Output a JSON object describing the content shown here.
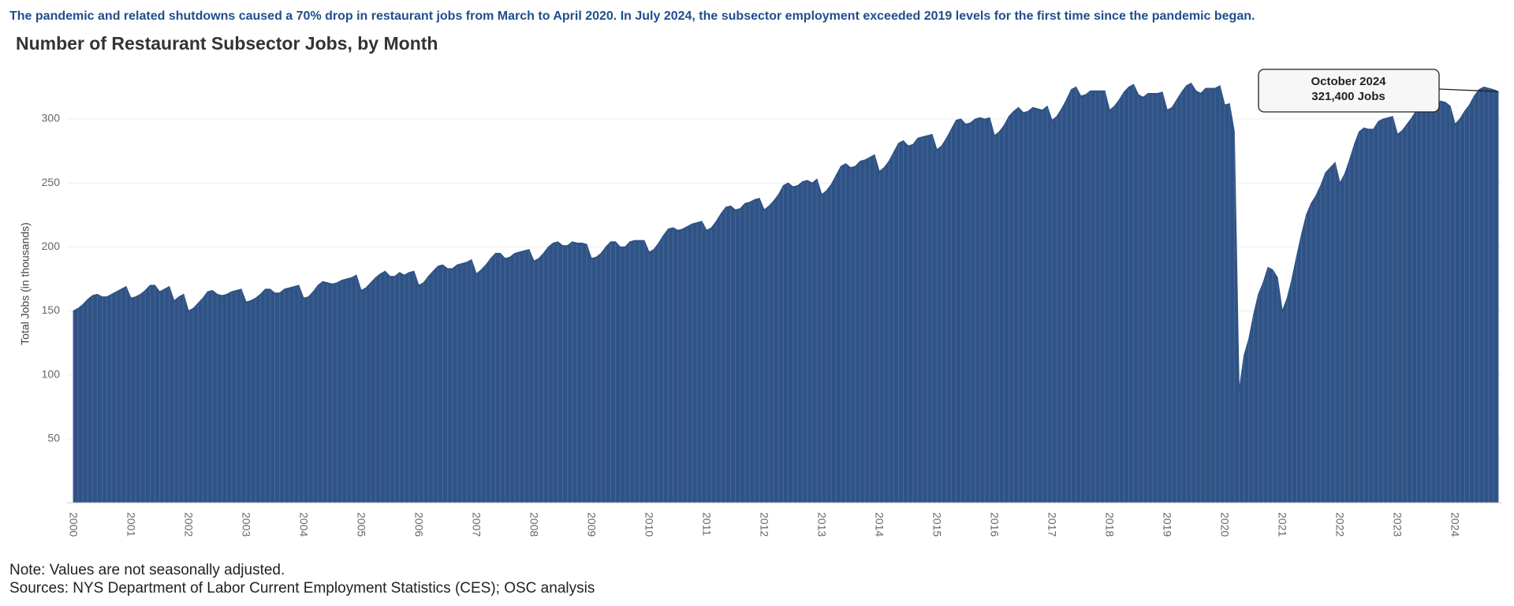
{
  "chart_data": {
    "type": "area",
    "subtitle": "The pandemic and related shutdowns caused a 70% drop in restaurant jobs from March to April 2020. In July 2024, the subsector employment exceeded 2019 levels for the first time since the pandemic began.",
    "title": "Number of Restaurant Subsector Jobs, by Month",
    "ylabel": "Total Jobs (in thousands)",
    "notes": [
      "Note: Values are not seasonally adjusted.",
      "Sources: NYS Department of Labor Current Employment Statistics (CES); OSC analysis"
    ],
    "annotation": {
      "title": "October 2024",
      "label": "321,400 Jobs"
    },
    "color": "#2f5386",
    "grid": true,
    "ylim": [
      0,
      340
    ],
    "yticks": [
      50,
      100,
      150,
      200,
      250,
      300
    ],
    "categories": [
      "2000",
      null,
      null,
      null,
      null,
      null,
      null,
      null,
      null,
      null,
      null,
      null,
      "2001",
      null,
      null,
      null,
      null,
      null,
      null,
      null,
      null,
      null,
      null,
      null,
      "2002",
      null,
      null,
      null,
      null,
      null,
      null,
      null,
      null,
      null,
      null,
      null,
      "2003",
      null,
      null,
      null,
      null,
      null,
      null,
      null,
      null,
      null,
      null,
      null,
      "2004",
      null,
      null,
      null,
      null,
      null,
      null,
      null,
      null,
      null,
      null,
      null,
      "2005",
      null,
      null,
      null,
      null,
      null,
      null,
      null,
      null,
      null,
      null,
      null,
      "2006",
      null,
      null,
      null,
      null,
      null,
      null,
      null,
      null,
      null,
      null,
      null,
      "2007",
      null,
      null,
      null,
      null,
      null,
      null,
      null,
      null,
      null,
      null,
      null,
      "2008",
      null,
      null,
      null,
      null,
      null,
      null,
      null,
      null,
      null,
      null,
      null,
      "2009",
      null,
      null,
      null,
      null,
      null,
      null,
      null,
      null,
      null,
      null,
      null,
      "2010",
      null,
      null,
      null,
      null,
      null,
      null,
      null,
      null,
      null,
      null,
      null,
      "2011",
      null,
      null,
      null,
      null,
      null,
      null,
      null,
      null,
      null,
      null,
      null,
      "2012",
      null,
      null,
      null,
      null,
      null,
      null,
      null,
      null,
      null,
      null,
      null,
      "2013",
      null,
      null,
      null,
      null,
      null,
      null,
      null,
      null,
      null,
      null,
      null,
      "2014",
      null,
      null,
      null,
      null,
      null,
      null,
      null,
      null,
      null,
      null,
      null,
      "2015",
      null,
      null,
      null,
      null,
      null,
      null,
      null,
      null,
      null,
      null,
      null,
      "2016",
      null,
      null,
      null,
      null,
      null,
      null,
      null,
      null,
      null,
      null,
      null,
      "2017",
      null,
      null,
      null,
      null,
      null,
      null,
      null,
      null,
      null,
      null,
      null,
      "2018",
      null,
      null,
      null,
      null,
      null,
      null,
      null,
      null,
      null,
      null,
      null,
      "2019",
      null,
      null,
      null,
      null,
      null,
      null,
      null,
      null,
      null,
      null,
      null,
      "2020",
      null,
      null,
      null,
      null,
      null,
      null,
      null,
      null,
      null,
      null,
      null,
      "2021",
      null,
      null,
      null,
      null,
      null,
      null,
      null,
      null,
      null,
      null,
      null,
      "2022",
      null,
      null,
      null,
      null,
      null,
      null,
      null,
      null,
      null,
      null,
      null,
      "2023",
      null,
      null,
      null,
      null,
      null,
      null,
      null,
      null,
      null,
      null,
      null,
      "2024",
      null,
      null,
      null,
      null,
      null,
      null,
      null,
      null,
      null
    ],
    "values": [
      150,
      152,
      155,
      159,
      162,
      163,
      161,
      161,
      163,
      165,
      167,
      169,
      160,
      161,
      163,
      166,
      170,
      170,
      165,
      167,
      169,
      158,
      161,
      163,
      150,
      152,
      156,
      160,
      165,
      166,
      163,
      162,
      163,
      165,
      166,
      167,
      157,
      158,
      160,
      163,
      167,
      167,
      164,
      164,
      167,
      168,
      169,
      170,
      160,
      161,
      165,
      170,
      173,
      172,
      171,
      172,
      174,
      175,
      176,
      178,
      166,
      168,
      172,
      176,
      179,
      181,
      177,
      177,
      180,
      178,
      180,
      181,
      170,
      172,
      177,
      181,
      185,
      186,
      183,
      183,
      186,
      187,
      188,
      190,
      179,
      182,
      186,
      191,
      195,
      195,
      191,
      192,
      195,
      196,
      197,
      198,
      189,
      191,
      195,
      200,
      203,
      204,
      201,
      201,
      204,
      203,
      203,
      202,
      191,
      192,
      195,
      200,
      204,
      204,
      200,
      200,
      204,
      205,
      205,
      205,
      196,
      198,
      203,
      209,
      214,
      215,
      213,
      214,
      216,
      218,
      219,
      220,
      213,
      215,
      220,
      226,
      231,
      232,
      229,
      230,
      234,
      235,
      237,
      238,
      229,
      232,
      236,
      241,
      248,
      250,
      247,
      248,
      251,
      252,
      250,
      253,
      241,
      244,
      249,
      256,
      263,
      265,
      262,
      263,
      267,
      268,
      270,
      272,
      259,
      262,
      267,
      274,
      281,
      283,
      279,
      280,
      285,
      286,
      287,
      288,
      276,
      279,
      285,
      292,
      299,
      300,
      296,
      297,
      300,
      301,
      300,
      301,
      287,
      290,
      295,
      302,
      306,
      309,
      305,
      306,
      309,
      308,
      307,
      310,
      299,
      302,
      308,
      315,
      323,
      325,
      318,
      319,
      322,
      322,
      322,
      322,
      307,
      310,
      315,
      321,
      325,
      327,
      319,
      317,
      320,
      320,
      320,
      321,
      307,
      309,
      315,
      321,
      326,
      328,
      322,
      320,
      324,
      324,
      324,
      326,
      311,
      312,
      290,
      88,
      115,
      128,
      147,
      163,
      172,
      184,
      182,
      176,
      150,
      160,
      175,
      193,
      210,
      225,
      234,
      240,
      248,
      258,
      262,
      266,
      250,
      257,
      268,
      280,
      290,
      293,
      292,
      292,
      298,
      300,
      301,
      302,
      288,
      291,
      296,
      301,
      307,
      313,
      317,
      311,
      310,
      314,
      313,
      310,
      296,
      300,
      306,
      311,
      318,
      323,
      325,
      324,
      323,
      321.4
    ]
  }
}
